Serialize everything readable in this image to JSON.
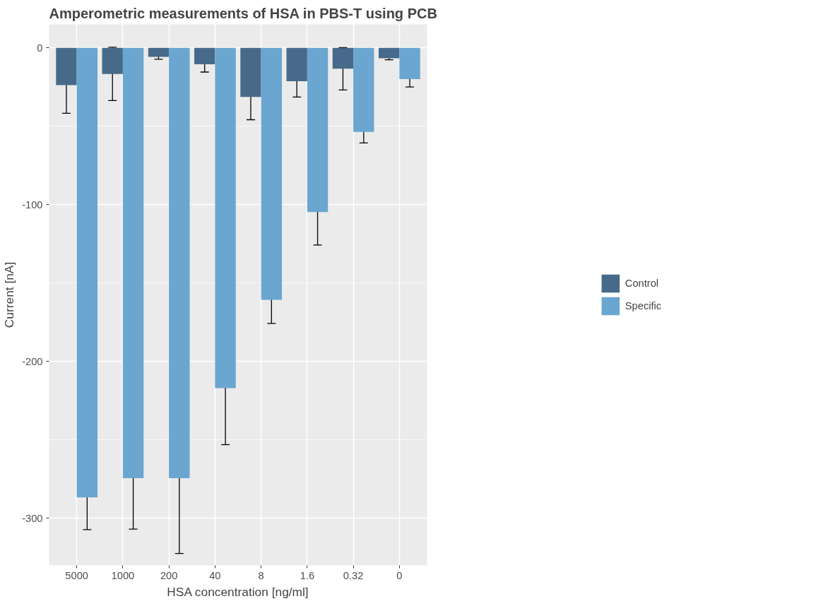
{
  "chart_data": {
    "type": "bar",
    "title": "Amperometric measurements of HSA in PBS-T using PCB",
    "xlabel": "HSA concentration [ng/ml]",
    "ylabel": "Current [nA]",
    "categories": [
      "5000",
      "1000",
      "200",
      "40",
      "8",
      "1.6",
      "0.32",
      "0"
    ],
    "series": [
      {
        "name": "Control",
        "color": "#476a8a",
        "values": [
          -23.7,
          -16.6,
          -5.7,
          -10.4,
          -31.3,
          -21.3,
          -13.3,
          -6.6
        ],
        "errors": [
          18,
          17,
          1.5,
          5,
          14.5,
          10,
          13.5,
          1
        ]
      },
      {
        "name": "Specific",
        "color": "#6aa6cf",
        "values": [
          -286.7,
          -274.4,
          -274.4,
          -217,
          -160.7,
          -104.7,
          -53.6,
          -19.9
        ],
        "errors": [
          20.5,
          32.5,
          48,
          36,
          15,
          21,
          7,
          5
        ]
      }
    ],
    "ylim": [
      -330,
      15
    ],
    "yticks": [
      -300,
      -200,
      -100,
      0
    ],
    "grid": true,
    "legend": "right"
  }
}
